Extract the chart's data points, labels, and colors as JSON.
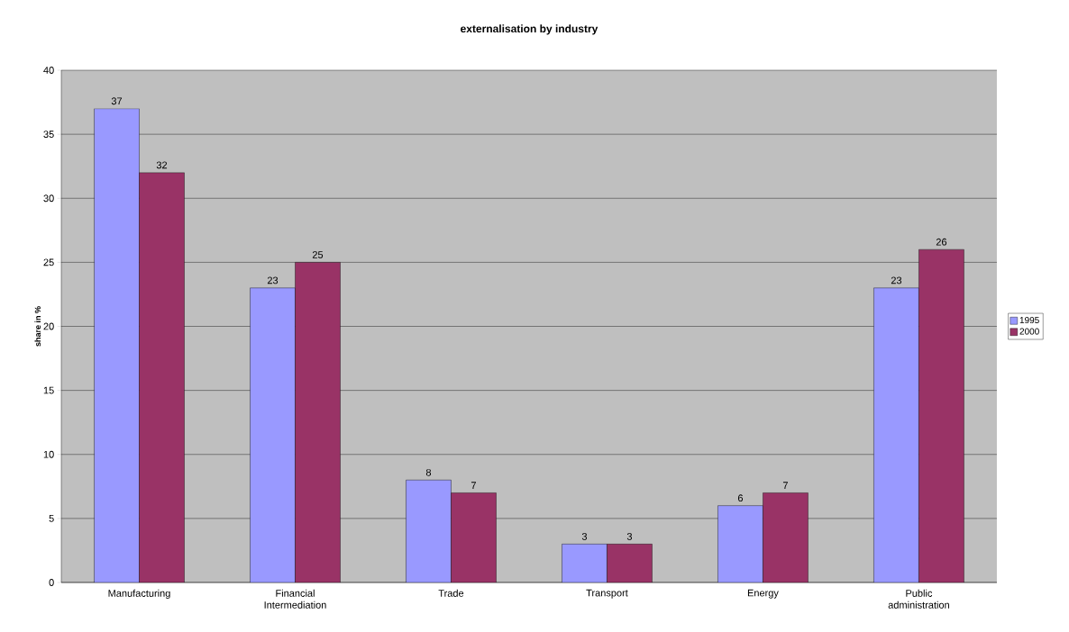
{
  "chart_data": {
    "type": "bar",
    "title": "externalisation by industry",
    "ylabel": "share in %",
    "categories": [
      "Manufacturing",
      "Financial Intermediation",
      "Trade",
      "Transport",
      "Energy",
      "Public administration"
    ],
    "series": [
      {
        "name": "1995",
        "color": "#9999ff",
        "values": [
          37,
          23,
          8,
          3,
          6,
          23
        ]
      },
      {
        "name": "2000",
        "color": "#993366",
        "values": [
          32,
          25,
          7,
          3,
          7,
          26
        ]
      }
    ],
    "ylim": [
      0,
      40
    ],
    "yticks": [
      0,
      5,
      10,
      15,
      20,
      25,
      30,
      35,
      40
    ],
    "grid": "y",
    "legend": "right",
    "data_labels": true
  }
}
